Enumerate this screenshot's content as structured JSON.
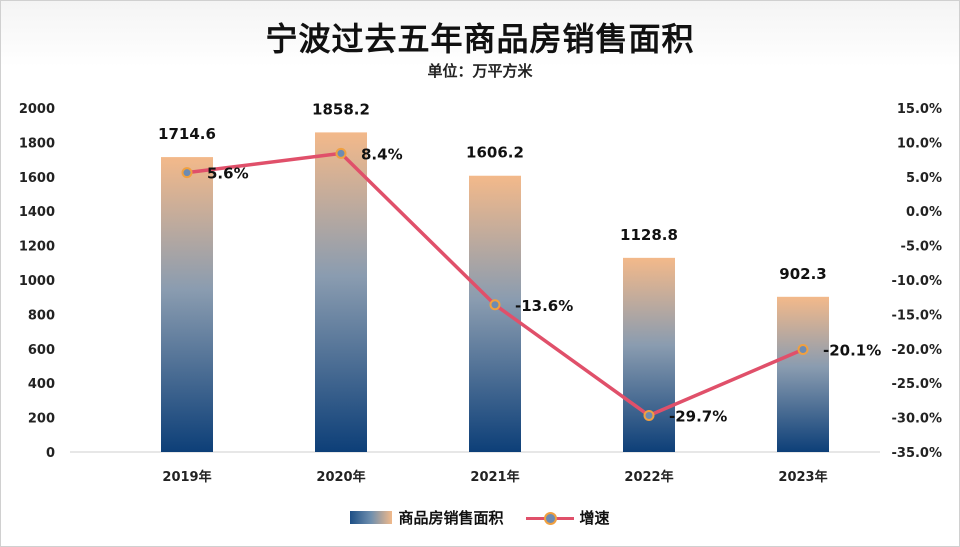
{
  "chart_data": {
    "type": "bar",
    "title": "宁波过去五年商品房销售面积",
    "subtitle": "单位：万平方米",
    "categories": [
      "2019年",
      "2020年",
      "2021年",
      "2022年",
      "2023年"
    ],
    "series": [
      {
        "name": "商品房销售面积",
        "type": "bar",
        "axis": "left",
        "values": [
          1714.6,
          1858.2,
          1606.2,
          1128.8,
          902.3
        ],
        "labels": [
          "1714.6",
          "1858.2",
          "1606.2",
          "1128.8",
          "902.3"
        ]
      },
      {
        "name": "增速",
        "type": "line",
        "axis": "right",
        "values": [
          5.6,
          8.4,
          -13.6,
          -29.7,
          -20.1
        ],
        "labels": [
          "5.6%",
          "8.4%",
          "-13.6%",
          "-29.7%",
          "-20.1%"
        ]
      }
    ],
    "y_left": {
      "ylim": [
        0,
        2000
      ],
      "ticks": [
        "0",
        "200",
        "400",
        "600",
        "800",
        "1000",
        "1200",
        "1400",
        "1600",
        "1800",
        "2000"
      ]
    },
    "y_right": {
      "ylim": [
        -35,
        15
      ],
      "ticks": [
        "-35.0%",
        "-30.0%",
        "-25.0%",
        "-20.0%",
        "-15.0%",
        "-10.0%",
        "-5.0%",
        "0.0%",
        "5.0%",
        "10.0%",
        "15.0%"
      ]
    },
    "legend": "bottom",
    "grid": false,
    "colors": {
      "bar_top": "#f3b98a",
      "bar_bottom": "#0d3f78",
      "line": "#e0506a",
      "marker_fill": "#6d8bb2",
      "marker_edge": "#f0a040"
    }
  }
}
